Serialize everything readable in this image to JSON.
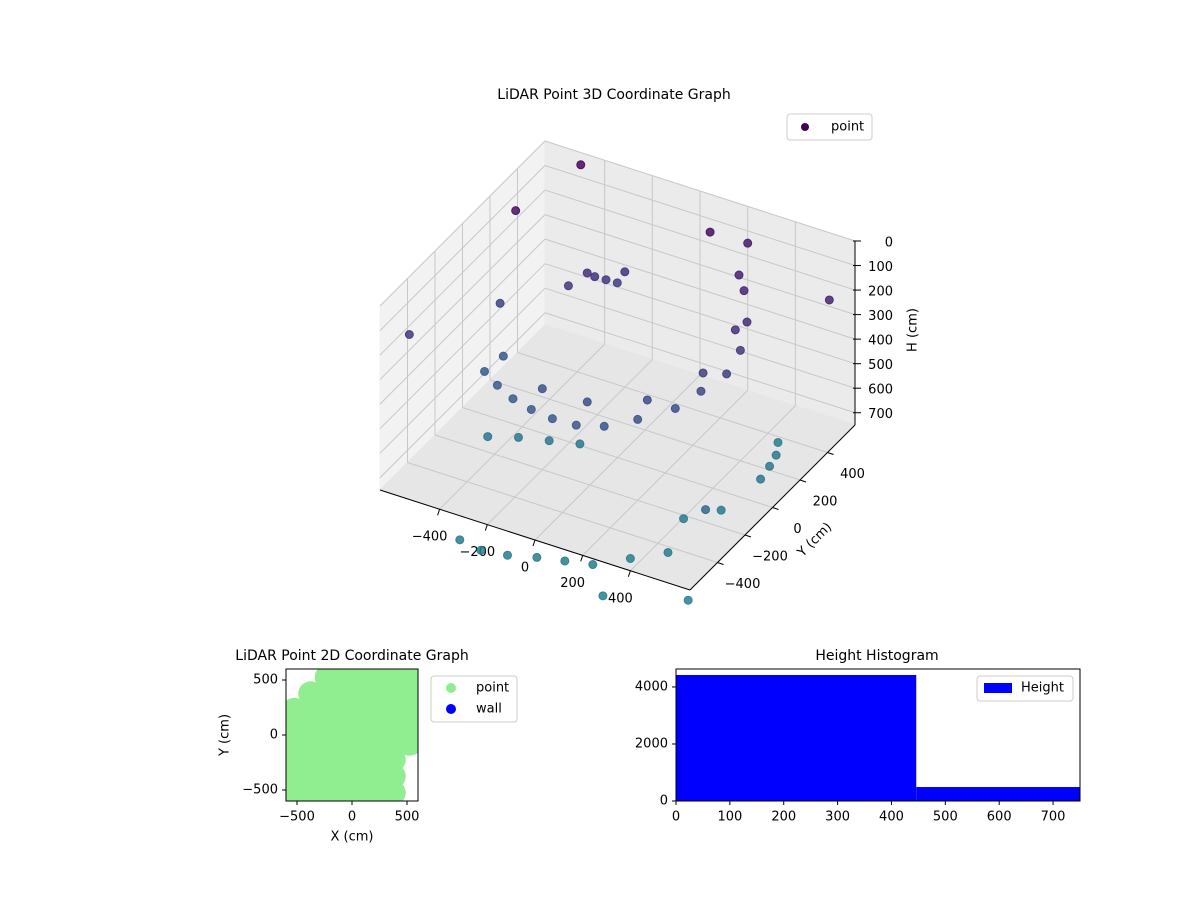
{
  "chart_data": [
    {
      "type": "scatter3d",
      "title": "LiDAR Point 3D Coordinate Graph",
      "ylabel": "Y (cm)",
      "zlabel": "H (cm)",
      "xlim": [
        -650,
        650
      ],
      "ylim": [
        -600,
        600
      ],
      "zlim": [
        0,
        750
      ],
      "z_inverted": true,
      "xticks": [
        {
          "value": -400,
          "label": "−400"
        },
        {
          "value": -200,
          "label": "−200"
        },
        0,
        200,
        400
      ],
      "yticks": [
        {
          "value": -400,
          "label": "−400"
        },
        {
          "value": -200,
          "label": "−200"
        },
        0,
        200,
        400
      ],
      "zticks": [
        0,
        100,
        200,
        300,
        400,
        500,
        600,
        700
      ],
      "colormap": "viridis",
      "grid": true,
      "legend": "upper right",
      "series": [
        {
          "name": "point",
          "color": "#440154",
          "x": [
            -500,
            -400,
            -300,
            -200,
            -100,
            0,
            100,
            200,
            300,
            350,
            400,
            400,
            370,
            300,
            250,
            -450,
            -200,
            0,
            200,
            330,
            350,
            -250,
            -280,
            -220,
            -300,
            -350,
            -200,
            -300,
            -200,
            -100,
            -400,
            0,
            100,
            200,
            300,
            400,
            500,
            -100,
            -200,
            600,
            580,
            500,
            550,
            450,
            550,
            -600,
            100,
            600,
            -500,
            700,
            -700,
            200,
            600,
            -550,
            400
          ],
          "y": [
            -100,
            -180,
            -240,
            -280,
            -300,
            -300,
            -270,
            -200,
            -100,
            0,
            100,
            200,
            300,
            400,
            450,
            -50,
            -200,
            -220,
            -130,
            50,
            250,
            350,
            320,
            380,
            300,
            250,
            400,
            -200,
            -150,
            -100,
            -250,
            -800,
            -760,
            -730,
            -700,
            -600,
            -500,
            -820,
            -800,
            0,
            100,
            300,
            200,
            -300,
            -200,
            300,
            500,
            500,
            600,
            -700,
            -300,
            600,
            -400,
            100,
            -800
          ],
          "z": [
            500,
            480,
            470,
            460,
            455,
            450,
            440,
            420,
            400,
            370,
            340,
            300,
            250,
            200,
            180,
            450,
            420,
            400,
            380,
            330,
            260,
            300,
            280,
            320,
            260,
            300,
            280,
            650,
            660,
            670,
            650,
            700,
            700,
            700,
            700,
            700,
            700,
            700,
            700,
            650,
            660,
            700,
            680,
            690,
            680,
            100,
            80,
            200,
            50,
            720,
            300,
            150,
            550,
            350,
            740
          ]
        }
      ]
    },
    {
      "type": "scatter",
      "title": "LiDAR Point 2D Coordinate Graph",
      "xlabel": "X (cm)",
      "ylabel": "Y (cm)",
      "xlim": [
        -600,
        600
      ],
      "ylim": [
        -600,
        600
      ],
      "xticks": [
        {
          "value": -500,
          "label": "−500"
        },
        0,
        500
      ],
      "yticks": [
        {
          "value": -500,
          "label": "−500"
        },
        0,
        500
      ],
      "legend": "outside right",
      "series": [
        {
          "name": "point",
          "color": "#90ee90",
          "x": [
            -225,
            -75,
            75,
            225,
            375,
            525,
            -375,
            -225,
            -75,
            75,
            225,
            375,
            525,
            -525,
            -375,
            -225,
            -75,
            75,
            225,
            375,
            525,
            -525,
            -375,
            -225,
            -75,
            75,
            225,
            375,
            525,
            -525,
            -375,
            -225,
            -75,
            75,
            225,
            375,
            525,
            -525,
            -375,
            -225,
            -75,
            75,
            225,
            375,
            -525,
            -375,
            -225,
            -75,
            75,
            225,
            375,
            -525,
            -375,
            -225,
            -75,
            75,
            225,
            375
          ],
          "y": [
            525,
            525,
            525,
            525,
            525,
            525,
            375,
            375,
            375,
            375,
            375,
            375,
            375,
            225,
            225,
            225,
            225,
            225,
            225,
            225,
            225,
            75,
            75,
            75,
            75,
            75,
            75,
            75,
            75,
            -75,
            -75,
            -75,
            -75,
            -75,
            -75,
            -75,
            -75,
            -225,
            -225,
            -225,
            -225,
            -225,
            -225,
            -225,
            -375,
            -375,
            -375,
            -375,
            -375,
            -375,
            -375,
            -525,
            -525,
            -525,
            -525,
            -525,
            -525,
            -525
          ]
        },
        {
          "name": "wall",
          "color": "#0000ff",
          "x": [],
          "y": []
        }
      ]
    },
    {
      "type": "histogram",
      "title": "Height Histogram",
      "xlim": [
        0,
        750
      ],
      "ylim": [
        0,
        4630
      ],
      "xticks": [
        0,
        100,
        200,
        300,
        400,
        500,
        600,
        700
      ],
      "yticks": [
        0,
        2000,
        4000
      ],
      "legend": "upper right",
      "series": [
        {
          "name": "Height",
          "color": "#0000ff",
          "bins": [
            0,
            446,
            750
          ],
          "counts": [
            4420,
            490
          ]
        }
      ]
    }
  ]
}
